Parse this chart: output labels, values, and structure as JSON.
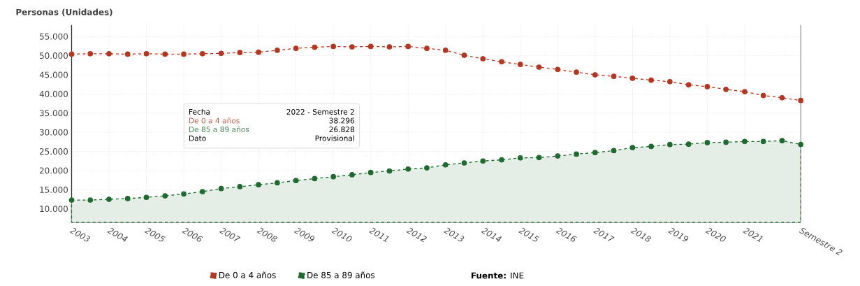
{
  "chart_data": {
    "type": "line",
    "ylabel": "Personas (Unidades)",
    "categories": [
      "2003",
      null,
      "2004",
      null,
      "2005",
      null,
      "2006",
      null,
      "2007",
      null,
      "2008",
      null,
      "2009",
      null,
      "2010",
      null,
      "2011",
      null,
      "2012",
      null,
      "2013",
      null,
      "2014",
      null,
      "2015",
      null,
      "2016",
      null,
      "2017",
      null,
      "2018",
      null,
      "2019",
      null,
      "2020",
      null,
      "2021",
      null,
      null,
      "Semestre 2"
    ],
    "series": [
      {
        "name": "De 0 a 4 años",
        "color": "#b5371f",
        "values": [
          50400,
          50500,
          50500,
          50400,
          50500,
          50400,
          50400,
          50500,
          50600,
          50800,
          50900,
          51400,
          51900,
          52200,
          52400,
          52300,
          52400,
          52300,
          52400,
          51900,
          51400,
          50100,
          49200,
          48400,
          47700,
          47000,
          46400,
          45700,
          45000,
          44600,
          44100,
          43600,
          43200,
          42400,
          41900,
          41200,
          40600,
          39600,
          39000,
          38296
        ]
      },
      {
        "name": "De 85 a 89 años",
        "type": "area",
        "color": "#1e6b2e",
        "values": [
          12300,
          12300,
          12500,
          12700,
          13000,
          13400,
          13900,
          14500,
          15300,
          15800,
          16300,
          16800,
          17400,
          17900,
          18400,
          18900,
          19500,
          19900,
          20400,
          20700,
          21500,
          22000,
          22500,
          22800,
          23300,
          23400,
          23800,
          24300,
          24700,
          25200,
          26000,
          26300,
          26800,
          26900,
          27300,
          27400,
          27600,
          27600,
          27800,
          26828
        ]
      }
    ],
    "ylim": [
      6500,
      58000
    ],
    "yticks": [
      {
        "value": 10000,
        "label": "10.000"
      },
      {
        "value": 15000,
        "label": "15.000"
      },
      {
        "value": 20000,
        "label": "20.000"
      },
      {
        "value": 25000,
        "label": "25.000"
      },
      {
        "value": 30000,
        "label": "30.000"
      },
      {
        "value": 35000,
        "label": "35.000"
      },
      {
        "value": 40000,
        "label": "40.000"
      },
      {
        "value": 45000,
        "label": "45.000"
      },
      {
        "value": 50000,
        "label": "50.000"
      },
      {
        "value": 55000,
        "label": "55.000"
      }
    ],
    "grid": true,
    "legend": "bottom",
    "marker": "circle",
    "line_style": "dashed",
    "annotations": [
      "Fecha",
      "2022 - Semestre 2",
      "De 0 a 4 años",
      "38.296",
      "De 85 a 89 años",
      "26.828",
      "Dato",
      "Provisional",
      "**Fuente:** INE"
    ]
  }
}
